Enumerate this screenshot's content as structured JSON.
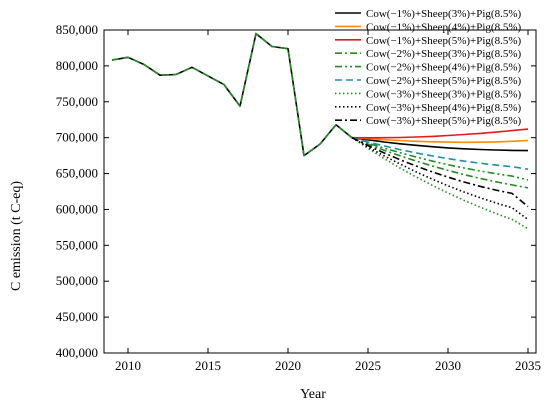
{
  "chart_data": {
    "type": "line",
    "title": "",
    "xlabel": "Year",
    "ylabel": "C emission (t C-eq)",
    "xlim": [
      2008.5,
      2035.5
    ],
    "ylim": [
      400000,
      850000
    ],
    "x_ticks": [
      2010,
      2015,
      2020,
      2025,
      2030,
      2035
    ],
    "y_ticks": [
      400000,
      450000,
      500000,
      550000,
      600000,
      650000,
      700000,
      750000,
      800000,
      850000
    ],
    "y_tick_labels": [
      "400,000",
      "450,000",
      "500,000",
      "550,000",
      "600,000",
      "650,000",
      "700,000",
      "750,000",
      "800,000",
      "850,000"
    ],
    "grid": false,
    "legend_position": "top-right",
    "historical": {
      "x": [
        2009,
        2010,
        2011,
        2012,
        2013,
        2014,
        2015,
        2016,
        2017,
        2018,
        2019,
        2020,
        2021,
        2022,
        2023,
        2024
      ],
      "y": [
        808000,
        812000,
        802000,
        787000,
        788000,
        798000,
        786000,
        774000,
        744000,
        845000,
        827000,
        824000,
        675000,
        691000,
        718000,
        700000
      ]
    },
    "projection_x": [
      2024,
      2025,
      2026,
      2027,
      2028,
      2029,
      2030,
      2031,
      2032,
      2033,
      2034,
      2035
    ],
    "series": [
      {
        "name": "Cow(−1%)+Sheep(3%)+Pig(8.5%)",
        "color": "#000000",
        "dash": "solid",
        "values": [
          700000,
          697000,
          694000,
          691500,
          689300,
          687400,
          685800,
          684500,
          683500,
          682800,
          682300,
          682000
        ]
      },
      {
        "name": "Cow(−1%)+Sheep(4%)+Pig(8.5%)",
        "color": "#ff8c00",
        "dash": "solid",
        "values": [
          700000,
          698500,
          697200,
          696000,
          695000,
          694300,
          693800,
          693600,
          693700,
          694100,
          694900,
          696000
        ]
      },
      {
        "name": "Cow(−1%)+Sheep(5%)+Pig(8.5%)",
        "color": "#e41a1c",
        "dash": "solid",
        "values": [
          700000,
          699800,
          699900,
          700300,
          700900,
          701800,
          703000,
          704400,
          706000,
          707800,
          709800,
          712000
        ]
      },
      {
        "name": "Cow(−2%)+Sheep(3%)+Pig(8.5%)",
        "color": "#228b22",
        "dash": "dashdot",
        "values": [
          700000,
          691000,
          682600,
          674800,
          667500,
          660700,
          654400,
          648600,
          643300,
          638500,
          634200,
          630000
        ]
      },
      {
        "name": "Cow(−2%)+Sheep(4%)+Pig(8.5%)",
        "color": "#228b22",
        "dash": "dashdotdot",
        "values": [
          700000,
          692500,
          685500,
          679000,
          673000,
          667500,
          662400,
          657800,
          653600,
          649800,
          646400,
          641000
        ]
      },
      {
        "name": "Cow(−2%)+Sheep(5%)+Pig(8.5%)",
        "color": "#1f8fa8",
        "dash": "dashed",
        "values": [
          700000,
          694000,
          688500,
          683400,
          678800,
          674600,
          670800,
          667400,
          664400,
          661800,
          659500,
          656000
        ]
      },
      {
        "name": "Cow(−3%)+Sheep(3%)+Pig(8.5%)",
        "color": "#228b22",
        "dash": "dotted",
        "values": [
          700000,
          685000,
          671000,
          657800,
          645400,
          633800,
          622900,
          612700,
          603200,
          594300,
          586100,
          573000
        ]
      },
      {
        "name": "Cow(−3%)+Sheep(4%)+Pig(8.5%)",
        "color": "#000000",
        "dash": "dotted",
        "values": [
          700000,
          687000,
          674800,
          663300,
          652500,
          642400,
          633000,
          624300,
          616300,
          609000,
          602400,
          586000
        ]
      },
      {
        "name": "Cow(−3%)+Sheep(5%)+Pig(8.5%)",
        "color": "#000000",
        "dash": "dashdot",
        "values": [
          700000,
          689000,
          678800,
          669300,
          660500,
          652400,
          645000,
          638300,
          632300,
          627000,
          622400,
          604000
        ]
      }
    ]
  }
}
